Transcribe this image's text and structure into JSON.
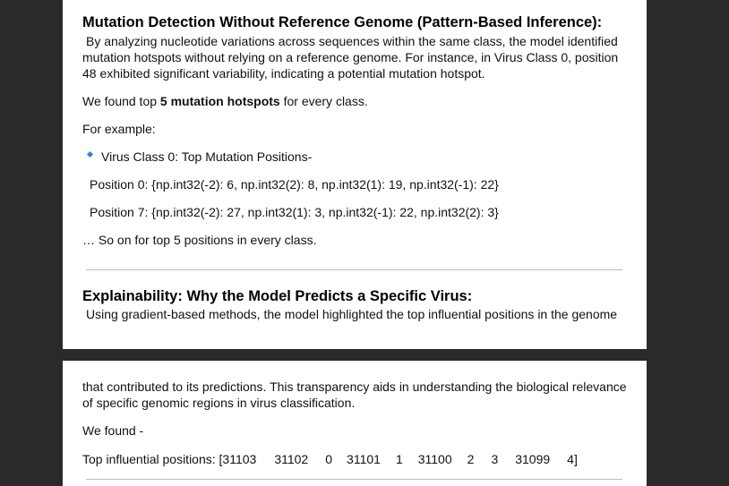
{
  "page1": {
    "section1_heading": "Mutation Detection Without Reference Genome (Pattern-Based Inference):",
    "section1_lines": [
      "By analyzing nucleotide variations across sequences within the same class, the model identified",
      "mutation hotspots without relying on a reference genome. For instance, in Virus Class 0, position",
      "48 exhibited significant variability, indicating a potential mutation hotspot."
    ],
    "found_prefix": "We found top ",
    "found_bold": "5 mutation hotspots",
    "found_suffix": " for every class.",
    "for_example": "For example:",
    "bullet_item": "Virus Class 0: Top Mutation Positions-",
    "position_0": "Position 0: {np.int32(-2): 6, np.int32(2): 8, np.int32(1): 19, np.int32(-1): 22}",
    "position_7": "Position 7: {np.int32(-2): 27, np.int32(1): 3, np.int32(-1): 22, np.int32(2): 3}",
    "so_on": "… So on  for top 5 positions in every class.",
    "section2_heading": "Explainability: Why the Model Predicts a Specific Virus:",
    "section2_line": "Using gradient-based methods, the model highlighted the top influential positions in the genome"
  },
  "page2": {
    "continuation_lines": [
      "that contributed to its predictions. This transparency aids in understanding the biological relevance",
      "of specific genomic regions in virus classification."
    ],
    "we_found": "We found -",
    "top_influential_label": "Top influential positions: [31103",
    "top_influential_values": [
      "31102",
      "0",
      "31101",
      "1",
      "31100",
      "2",
      "3",
      "31099",
      "4]"
    ]
  }
}
